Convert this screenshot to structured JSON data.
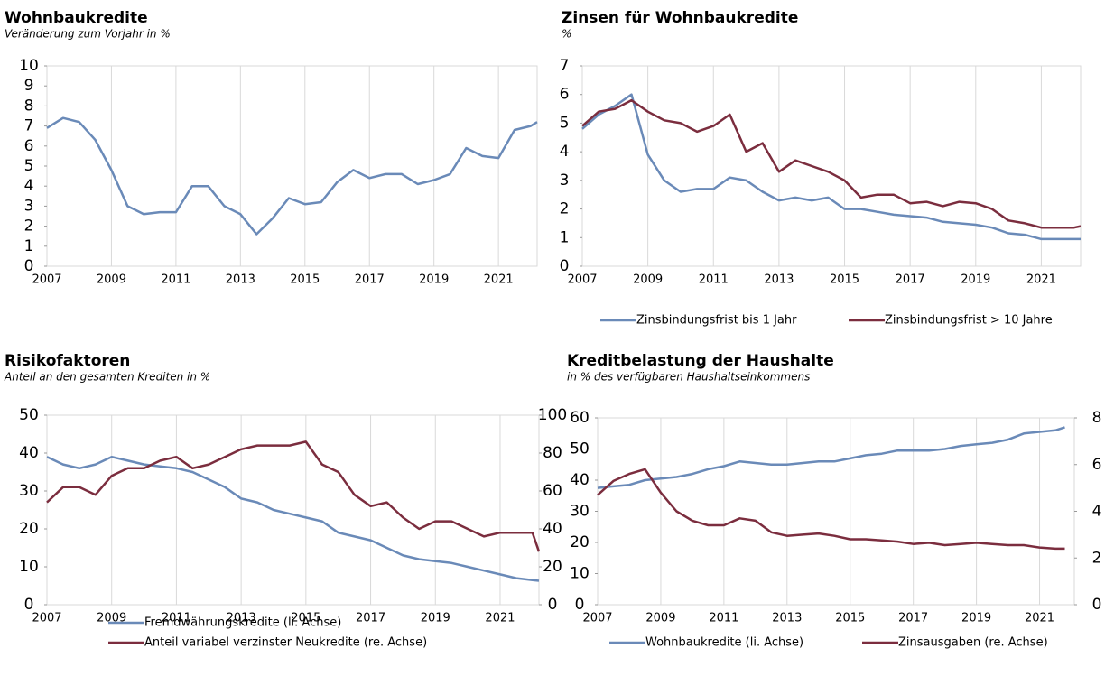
{
  "chart_data": [
    {
      "type": "line",
      "title": "Wohnbaukredite",
      "subtitle": "Veränderung zum Vorjahr in %",
      "x": [
        2007,
        2007.5,
        2008,
        2008.5,
        2009,
        2009.5,
        2010,
        2010.5,
        2011,
        2011.5,
        2012,
        2012.5,
        2013,
        2013.5,
        2014,
        2014.5,
        2015,
        2015.5,
        2016,
        2016.5,
        2017,
        2017.5,
        2018,
        2018.5,
        2019,
        2019.5,
        2020,
        2020.5,
        2021,
        2021.5,
        2022,
        2022.2
      ],
      "series": [
        {
          "name": null,
          "color": "#6a8ab8",
          "values": [
            6.9,
            7.4,
            7.2,
            6.3,
            4.8,
            3.0,
            2.6,
            2.7,
            2.7,
            4.0,
            4.0,
            3.0,
            2.6,
            1.6,
            2.4,
            3.4,
            3.1,
            3.2,
            4.2,
            4.8,
            4.4,
            4.6,
            4.6,
            4.1,
            4.3,
            4.6,
            5.9,
            5.5,
            5.4,
            6.8,
            7.0,
            7.2
          ]
        }
      ],
      "xlim": [
        2007,
        2022.2
      ],
      "xticks": [
        2007,
        2009,
        2011,
        2013,
        2015,
        2017,
        2019,
        2021
      ],
      "ylim": [
        0,
        10
      ],
      "yticks": [
        0,
        1,
        2,
        3,
        4,
        5,
        6,
        7,
        8,
        9,
        10
      ],
      "grid": true
    },
    {
      "type": "line",
      "title": "Zinsen für Wohnbaukredite",
      "subtitle": "%",
      "x": [
        2007,
        2007.5,
        2008,
        2008.5,
        2009,
        2009.5,
        2010,
        2010.5,
        2011,
        2011.5,
        2012,
        2012.5,
        2013,
        2013.5,
        2014,
        2014.5,
        2015,
        2015.5,
        2016,
        2016.5,
        2017,
        2017.5,
        2018,
        2018.5,
        2019,
        2019.5,
        2020,
        2020.5,
        2021,
        2021.5,
        2022,
        2022.2
      ],
      "series": [
        {
          "name": "Zinsbindungsfrist bis 1 Jahr",
          "color": "#6a8ab8",
          "values": [
            4.8,
            5.3,
            5.6,
            6.0,
            3.9,
            3.0,
            2.6,
            2.7,
            2.7,
            3.1,
            3.0,
            2.6,
            2.3,
            2.4,
            2.3,
            2.4,
            2.0,
            2.0,
            1.9,
            1.8,
            1.75,
            1.7,
            1.55,
            1.5,
            1.45,
            1.35,
            1.15,
            1.1,
            0.95,
            0.95,
            0.95,
            0.95
          ]
        },
        {
          "name": "Zinsbindungsfrist > 10 Jahre",
          "color": "#7b2d3e",
          "values": [
            4.9,
            5.4,
            5.5,
            5.8,
            5.4,
            5.1,
            5.0,
            4.7,
            4.9,
            5.3,
            4.0,
            4.3,
            3.3,
            3.7,
            3.5,
            3.3,
            3.0,
            2.4,
            2.5,
            2.5,
            2.2,
            2.25,
            2.1,
            2.25,
            2.2,
            2.0,
            1.6,
            1.5,
            1.35,
            1.35,
            1.35,
            1.4
          ]
        }
      ],
      "xlim": [
        2007,
        2022.2
      ],
      "xticks": [
        2007,
        2009,
        2011,
        2013,
        2015,
        2017,
        2019,
        2021
      ],
      "ylim": [
        0,
        7
      ],
      "yticks": [
        0,
        1,
        2,
        3,
        4,
        5,
        6,
        7
      ],
      "grid": true,
      "legend": "bottom"
    },
    {
      "type": "line",
      "title": "Risikofaktoren",
      "subtitle": "Anteil an den gesamten Krediten in %",
      "x": [
        2007,
        2007.5,
        2008,
        2008.5,
        2009,
        2009.5,
        2010,
        2010.5,
        2011,
        2011.5,
        2012,
        2012.5,
        2013,
        2013.5,
        2014,
        2014.5,
        2015,
        2015.5,
        2016,
        2016.5,
        2017,
        2017.5,
        2018,
        2018.5,
        2019,
        2019.5,
        2020,
        2020.5,
        2021,
        2021.5,
        2022,
        2022.2
      ],
      "series": [
        {
          "name": "Fremdwährungskredite (li. Achse)",
          "color": "#6a8ab8",
          "values": [
            39,
            37,
            36,
            37,
            39,
            38,
            37,
            36.5,
            36,
            35,
            33,
            31,
            28,
            27,
            25,
            24,
            23,
            22,
            19,
            18,
            17,
            15,
            13,
            12,
            11.5,
            11,
            10,
            9,
            8,
            7,
            6.5,
            6.3
          ]
        },
        {
          "name": "Anteil variabel verzinster Neukredite (re. Achse)",
          "color": "#7b2d3e",
          "axis": "y2",
          "values": [
            54,
            62,
            62,
            58,
            68,
            72,
            72,
            76,
            78,
            72,
            74,
            78,
            82,
            84,
            84,
            84,
            86,
            74,
            70,
            58,
            52,
            54,
            46,
            40,
            44,
            44,
            40,
            36,
            38,
            38,
            38,
            28
          ]
        }
      ],
      "xlim": [
        2007,
        2022.2
      ],
      "xticks": [
        2007,
        2009,
        2011,
        2013,
        2015,
        2017,
        2019,
        2021
      ],
      "ylim": [
        0,
        50
      ],
      "yticks": [
        0,
        10,
        20,
        30,
        40,
        50
      ],
      "y2lim": [
        0,
        100
      ],
      "y2ticks": [
        0,
        20,
        40,
        60,
        80,
        100
      ],
      "grid": true,
      "legend": "bottom"
    },
    {
      "type": "line",
      "title": "Kreditbelastung der Haushalte",
      "subtitle": "in % des verfügbaren Haushaltseinkommens",
      "x": [
        2007,
        2007.5,
        2008,
        2008.5,
        2009,
        2009.5,
        2010,
        2010.5,
        2011,
        2011.5,
        2012,
        2012.5,
        2013,
        2013.5,
        2014,
        2014.5,
        2015,
        2015.5,
        2016,
        2016.5,
        2017,
        2017.5,
        2018,
        2018.5,
        2019,
        2019.5,
        2020,
        2020.5,
        2021,
        2021.5,
        2021.8
      ],
      "series": [
        {
          "name": "Wohnbaukredite (li. Achse)",
          "color": "#6a8ab8",
          "values": [
            37.5,
            38,
            38.5,
            40,
            40.5,
            41,
            42,
            43.5,
            44.5,
            46,
            45.5,
            45,
            45,
            45.5,
            46,
            46,
            47,
            48,
            48.5,
            49.5,
            49.5,
            49.5,
            50,
            51,
            51.5,
            52,
            53,
            55,
            55.5,
            56,
            57
          ]
        },
        {
          "name": "Zinsausgaben (re. Achse)",
          "color": "#7b2d3e",
          "axis": "y2",
          "values": [
            4.7,
            5.3,
            5.6,
            5.8,
            4.8,
            4.0,
            3.6,
            3.4,
            3.4,
            3.7,
            3.6,
            3.1,
            2.95,
            3.0,
            3.05,
            2.95,
            2.8,
            2.8,
            2.75,
            2.7,
            2.6,
            2.65,
            2.55,
            2.6,
            2.65,
            2.6,
            2.55,
            2.55,
            2.45,
            2.4,
            2.4
          ]
        }
      ],
      "xlim": [
        2007,
        2022.1
      ],
      "xticks": [
        2007,
        2009,
        2011,
        2013,
        2015,
        2017,
        2019,
        2021
      ],
      "ylim": [
        0,
        60
      ],
      "yticks": [
        0,
        10,
        20,
        30,
        40,
        50,
        60
      ],
      "y2lim": [
        0,
        8
      ],
      "y2ticks": [
        0,
        2,
        4,
        6,
        8
      ],
      "grid": true,
      "legend": "bottom"
    }
  ]
}
